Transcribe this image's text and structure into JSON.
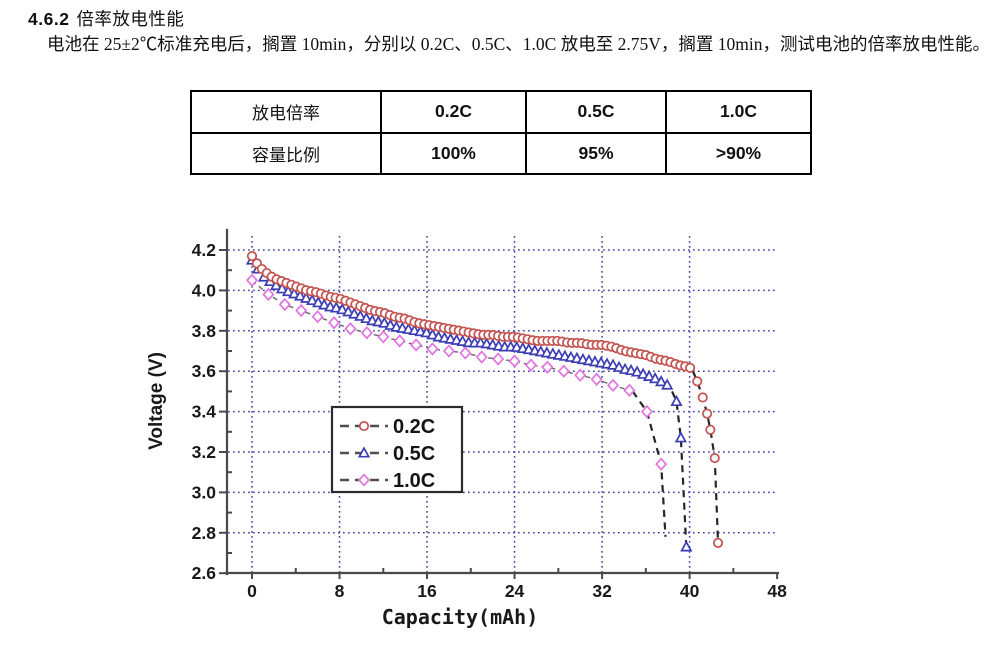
{
  "heading": {
    "number": "4.6.2",
    "title": "倍率放电性能"
  },
  "paragraph": {
    "text": "电池在 25±2℃标准充电后，搁置 10min，分别以 0.2C、0.5C、1.0C 放电至 2.75V，搁置 10min，测试电池的倍率放电性能。"
  },
  "table": {
    "rows": [
      {
        "header": "放电倍率",
        "cells": [
          "0.2C",
          "0.5C",
          "1.0C"
        ]
      },
      {
        "header": "容量比例",
        "cells": [
          "100%",
          "95%",
          ">90%"
        ]
      }
    ]
  },
  "chart_data": {
    "type": "scatter",
    "title": "",
    "xlabel": "Capacity(mAh)",
    "ylabel": "Voltage (V)",
    "xlim": [
      0,
      48
    ],
    "ylim": [
      2.6,
      4.2
    ],
    "xticks": [
      0,
      8,
      16,
      24,
      32,
      40,
      48
    ],
    "x_minor_ticks": [
      4,
      12,
      20,
      28,
      36,
      44
    ],
    "yticks": [
      2.6,
      2.8,
      3.0,
      3.2,
      3.4,
      3.6,
      3.8,
      4.0,
      4.2
    ],
    "grid": {
      "style": "dotted",
      "color": "#4545a9",
      "vertical_at": [
        0,
        8,
        16,
        24,
        32,
        40
      ],
      "horizontal_at": [
        2.8,
        3.0,
        3.2,
        3.4,
        3.6,
        3.8,
        4.0,
        4.2
      ]
    },
    "legend": {
      "position": "inside-left-center",
      "bordered": true,
      "labels": [
        "0.2C",
        "0.5C",
        "1.0C"
      ]
    },
    "series": [
      {
        "name": "0.2C",
        "marker": "circle",
        "color": "#c4524e",
        "marker_step_mah": 0.45,
        "curve": [
          [
            0,
            4.17
          ],
          [
            0.5,
            4.13
          ],
          [
            1,
            4.1
          ],
          [
            2,
            4.06
          ],
          [
            3,
            4.04
          ],
          [
            4,
            4.02
          ],
          [
            5,
            4.0
          ],
          [
            6,
            3.99
          ],
          [
            7,
            3.97
          ],
          [
            8,
            3.96
          ],
          [
            9,
            3.94
          ],
          [
            10,
            3.92
          ],
          [
            11,
            3.9
          ],
          [
            12,
            3.89
          ],
          [
            13,
            3.87
          ],
          [
            14,
            3.86
          ],
          [
            15,
            3.84
          ],
          [
            16,
            3.83
          ],
          [
            17,
            3.82
          ],
          [
            18,
            3.81
          ],
          [
            19,
            3.8
          ],
          [
            20,
            3.79
          ],
          [
            21,
            3.78
          ],
          [
            22,
            3.78
          ],
          [
            23,
            3.77
          ],
          [
            24,
            3.77
          ],
          [
            25,
            3.76
          ],
          [
            26,
            3.75
          ],
          [
            27,
            3.75
          ],
          [
            28,
            3.75
          ],
          [
            29,
            3.74
          ],
          [
            30,
            3.74
          ],
          [
            31,
            3.73
          ],
          [
            32,
            3.73
          ],
          [
            33,
            3.72
          ],
          [
            34,
            3.7
          ],
          [
            35,
            3.69
          ],
          [
            36,
            3.68
          ],
          [
            37,
            3.66
          ],
          [
            38,
            3.65
          ],
          [
            39,
            3.63
          ],
          [
            40,
            3.62
          ],
          [
            40.3,
            3.6
          ]
        ],
        "tail": [
          [
            40.7,
            3.55
          ],
          [
            41.2,
            3.47
          ],
          [
            41.6,
            3.39
          ],
          [
            41.9,
            3.31
          ],
          [
            42.3,
            3.17
          ],
          [
            42.6,
            2.75
          ]
        ],
        "tail_end_marker": true
      },
      {
        "name": "0.5C",
        "marker": "triangle",
        "color": "#3c3cb4",
        "marker_step_mah": 0.55,
        "curve": [
          [
            0,
            4.15
          ],
          [
            0.5,
            4.11
          ],
          [
            1,
            4.07
          ],
          [
            2,
            4.03
          ],
          [
            3,
            4.0
          ],
          [
            4,
            3.98
          ],
          [
            5,
            3.96
          ],
          [
            6,
            3.94
          ],
          [
            7,
            3.92
          ],
          [
            8,
            3.91
          ],
          [
            9,
            3.89
          ],
          [
            10,
            3.87
          ],
          [
            11,
            3.85
          ],
          [
            12,
            3.84
          ],
          [
            13,
            3.82
          ],
          [
            14,
            3.81
          ],
          [
            15,
            3.8
          ],
          [
            16,
            3.79
          ],
          [
            17,
            3.77
          ],
          [
            18,
            3.76
          ],
          [
            19,
            3.75
          ],
          [
            20,
            3.74
          ],
          [
            21,
            3.74
          ],
          [
            22,
            3.73
          ],
          [
            23,
            3.72
          ],
          [
            24,
            3.72
          ],
          [
            25,
            3.71
          ],
          [
            26,
            3.7
          ],
          [
            27,
            3.69
          ],
          [
            28,
            3.68
          ],
          [
            29,
            3.67
          ],
          [
            30,
            3.66
          ],
          [
            31,
            3.65
          ],
          [
            32,
            3.64
          ],
          [
            33,
            3.63
          ],
          [
            34,
            3.61
          ],
          [
            35,
            3.6
          ],
          [
            36,
            3.58
          ],
          [
            37,
            3.56
          ],
          [
            38,
            3.53
          ],
          [
            38.4,
            3.5
          ]
        ],
        "tail": [
          [
            38.8,
            3.45
          ],
          [
            39.2,
            3.27
          ],
          [
            39.7,
            2.73
          ]
        ],
        "tail_end_marker": true
      },
      {
        "name": "1.0C",
        "marker": "diamond",
        "color": "#e273e2",
        "marker_step_mah": 1.5,
        "curve": [
          [
            0,
            4.05
          ],
          [
            1.5,
            3.98
          ],
          [
            3,
            3.93
          ],
          [
            4.5,
            3.9
          ],
          [
            6,
            3.87
          ],
          [
            7.5,
            3.84
          ],
          [
            9,
            3.81
          ],
          [
            10.5,
            3.79
          ],
          [
            12,
            3.77
          ],
          [
            13.5,
            3.75
          ],
          [
            15,
            3.73
          ],
          [
            16.5,
            3.71
          ],
          [
            18,
            3.7
          ],
          [
            19.5,
            3.69
          ],
          [
            21,
            3.67
          ],
          [
            22.5,
            3.66
          ],
          [
            24,
            3.65
          ],
          [
            25.5,
            3.63
          ],
          [
            27,
            3.62
          ],
          [
            28.5,
            3.6
          ],
          [
            30,
            3.58
          ],
          [
            31.5,
            3.56
          ],
          [
            33,
            3.53
          ],
          [
            34.8,
            3.5
          ]
        ],
        "tail": [
          [
            36.1,
            3.4
          ],
          [
            37.4,
            3.14
          ],
          [
            37.8,
            2.78
          ]
        ],
        "tail_end_marker": false
      }
    ]
  }
}
